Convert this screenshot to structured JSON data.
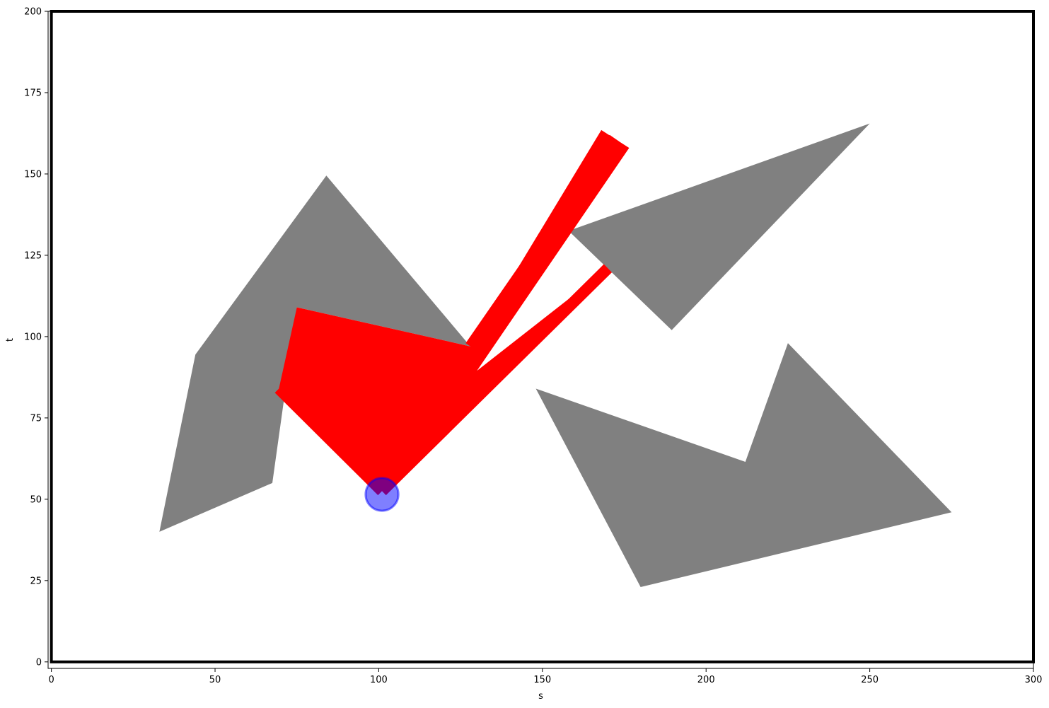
{
  "chart_data": {
    "type": "scatter",
    "xlabel": "s",
    "ylabel": "t",
    "xlim": [
      -1,
      300
    ],
    "ylim": [
      -2,
      200
    ],
    "x_ticks": [
      0,
      50,
      100,
      150,
      200,
      250,
      300
    ],
    "y_ticks": [
      0,
      25,
      50,
      75,
      100,
      125,
      150,
      175,
      200
    ],
    "grid": false,
    "obstacles": [
      {
        "name": "",
        "color": "#808080",
        "points": [
          [
            33,
            40
          ],
          [
            44,
            94.5
          ],
          [
            84,
            149.5
          ],
          [
            128,
            97
          ],
          [
            75,
            109
          ],
          [
            67.5,
            55
          ]
        ]
      },
      {
        "name": "",
        "color": "#808080",
        "points": [
          [
            158,
            132.5
          ],
          [
            250,
            165.5
          ],
          [
            189.5,
            102
          ]
        ]
      },
      {
        "name": "",
        "color": "#808080",
        "points": [
          [
            148,
            84
          ],
          [
            212,
            61.5
          ],
          [
            225,
            98
          ],
          [
            275,
            46
          ],
          [
            180,
            23
          ]
        ]
      }
    ],
    "robot": {
      "color": "#ff0000",
      "points": [
        [
          101,
          52.5
        ],
        [
          69.5,
          84
        ],
        [
          75,
          109
        ],
        [
          128,
          97
        ],
        [
          168,
          163.5
        ],
        [
          176.5,
          158
        ],
        [
          130,
          89.5
        ],
        [
          170,
          121
        ]
      ]
    },
    "robot_links": [
      {
        "from": [
          101,
          52.5
        ],
        "to": [
          170,
          121
        ],
        "width": 3.5
      },
      {
        "from": [
          128,
          97
        ],
        "to": [
          172,
          161
        ],
        "width": 3.5
      },
      {
        "from": [
          101,
          52.5
        ],
        "to": [
          69.5,
          84
        ],
        "width": 3.5
      }
    ],
    "base": {
      "x": 101,
      "y": 51.5,
      "radius": 5,
      "fill": "#0000ff",
      "alpha": 0.5
    },
    "boundary": {
      "x0": 0,
      "y0": 0,
      "x1": 300,
      "y1": 200,
      "color": "#000000"
    }
  }
}
